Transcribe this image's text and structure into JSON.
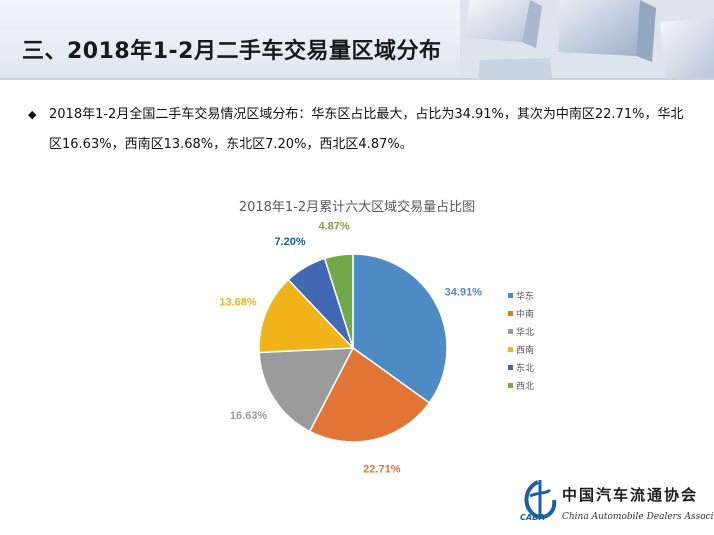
{
  "header": {
    "title": "三、2018年1-2月二手车交易量区域分布"
  },
  "bullet": {
    "text": "2018年1-2月全国二手车交易情况区域分布：华东区占比最大，占比为34.91%，其次为中南区22.71%，华北区16.63%，西南区13.68%，东北区7.20%，西北区4.87%。"
  },
  "chart_data": {
    "type": "pie",
    "title": "2018年1-2月累计六大区域交易量占比图",
    "categories": [
      "华东",
      "中南",
      "华北",
      "西南",
      "东北",
      "西北"
    ],
    "values": [
      34.91,
      22.71,
      16.63,
      13.68,
      7.2,
      4.87
    ],
    "labels": [
      "34.91%",
      "22.71%",
      "16.63%",
      "13.68%",
      "7.20%",
      "4.87%"
    ],
    "colors": [
      "#4e8ac4",
      "#e07535",
      "#9b9b9b",
      "#f0b318",
      "#4368b3",
      "#72a84a"
    ],
    "label_colors": [
      "#4e8ac4",
      "#e07535",
      "#9b9b9b",
      "#f0b318",
      "#1a5ca8",
      "#72a84a"
    ],
    "legend_position": "right",
    "start": "12 o'clock",
    "direction": "clockwise"
  },
  "logo": {
    "name_cn": "中国汽车流通协会",
    "name_en": "China Automobile Dealers Association",
    "abbr": "CADA"
  }
}
